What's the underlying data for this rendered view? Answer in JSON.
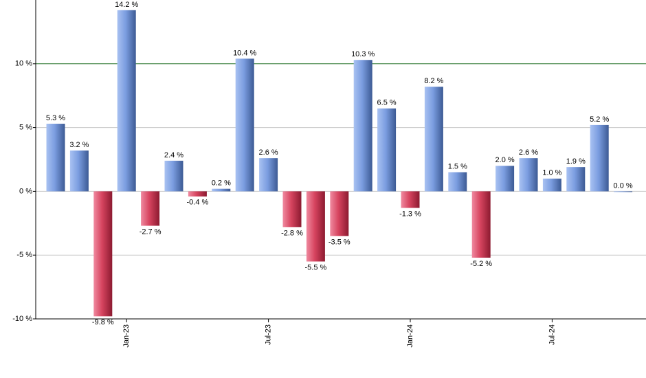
{
  "chart_data": {
    "type": "bar",
    "categories": [
      null,
      null,
      null,
      "Jan-23",
      null,
      null,
      null,
      null,
      null,
      "Jul-23",
      null,
      null,
      null,
      null,
      null,
      "Jan-24",
      null,
      null,
      null,
      null,
      null,
      "Jul-24",
      null,
      null,
      null
    ],
    "values": [
      5.3,
      3.2,
      -9.8,
      14.2,
      -2.7,
      2.4,
      -0.4,
      0.2,
      10.4,
      2.6,
      -2.8,
      -5.5,
      -3.5,
      10.3,
      6.5,
      -1.3,
      8.2,
      1.5,
      -5.2,
      2.0,
      2.6,
      1.0,
      1.9,
      5.2,
      0.0
    ],
    "value_labels": [
      "5.3 %",
      "3.2 %",
      "-9.8 %",
      "14.2 %",
      "-2.7 %",
      "2.4 %",
      "-0.4 %",
      "0.2 %",
      "10.4 %",
      "2.6 %",
      "-2.8 %",
      "-5.5 %",
      "-3.5 %",
      "10.3 %",
      "6.5 %",
      "-1.3 %",
      "8.2 %",
      "1.5 %",
      "-5.2 %",
      "2.0 %",
      "2.6 %",
      "1.0 %",
      "1.9 %",
      "5.2 %",
      "0.0 %"
    ],
    "positive_color": "#6f93d9",
    "negative_color": "#d2405a",
    "ylim": [
      -10,
      15
    ],
    "yticks": [
      {
        "value": -10,
        "label": "-10 %"
      },
      {
        "value": -5,
        "label": "-5 %"
      },
      {
        "value": 0,
        "label": "0 %"
      },
      {
        "value": 5,
        "label": "5 %"
      },
      {
        "value": 10,
        "label": "10 %"
      }
    ],
    "reference_line": {
      "value": 10,
      "color": "#2e7d32"
    },
    "grid": true
  }
}
